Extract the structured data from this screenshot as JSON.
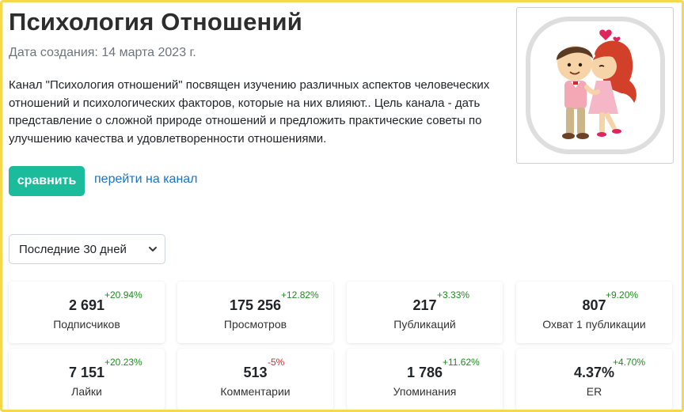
{
  "channel": {
    "title": "Психология Отношений",
    "created": "Дата создания: 14 марта 2023 г.",
    "description": "Канал \"Психология отношений\" посвящен изучению различных аспектов человеческих отношений и психологических факторов, которые на них влияют.. Цель канала - дать представление о сложной природе отношений и предложить практические советы по улучшению качества и удовлетворенности отношениями.",
    "thumbnail_icon": "couple-kiss-illustration"
  },
  "actions": {
    "compare_label": "сравнить",
    "channel_link_label": "перейти на канал"
  },
  "filter": {
    "period_selected": "Последние 30 дней"
  },
  "colors": {
    "accent": "#1abc9c",
    "link": "#1a73c8",
    "positive": "#1e8c1e",
    "negative": "#d62828",
    "frame": "#f5d94a"
  },
  "stats": [
    {
      "value": "2 691",
      "delta": "+20.94%",
      "trend": "up",
      "label": "Подписчиков"
    },
    {
      "value": "175 256",
      "delta": "+12.82%",
      "trend": "up",
      "label": "Просмотров"
    },
    {
      "value": "217",
      "delta": "+3.33%",
      "trend": "up",
      "label": "Публикаций"
    },
    {
      "value": "807",
      "delta": "+9.20%",
      "trend": "up",
      "label": "Охват 1 публикации"
    },
    {
      "value": "7 151",
      "delta": "+20.23%",
      "trend": "up",
      "label": "Лайки"
    },
    {
      "value": "513",
      "delta": "-5%",
      "trend": "down",
      "label": "Комментарии"
    },
    {
      "value": "1 786",
      "delta": "+11.62%",
      "trend": "up",
      "label": "Упоминания"
    },
    {
      "value": "4.37%",
      "delta": "+4.70%",
      "trend": "up",
      "label": "ER"
    }
  ]
}
